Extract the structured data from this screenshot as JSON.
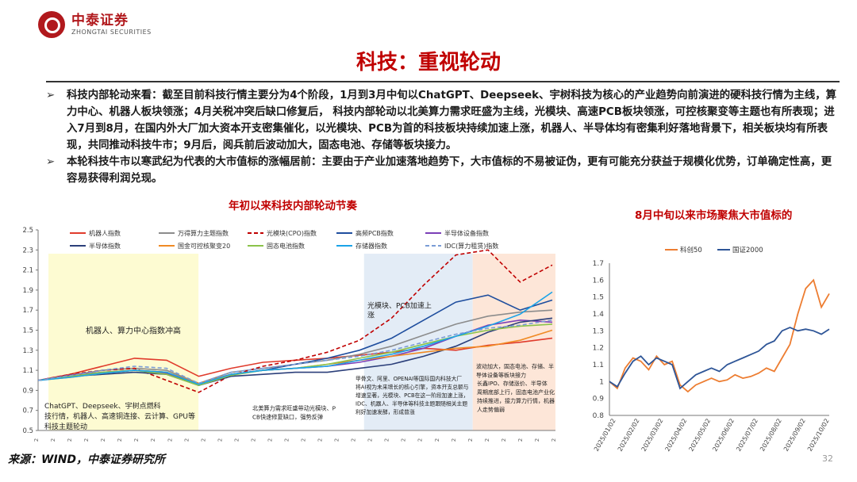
{
  "header": {
    "logo_cn": "中泰证券",
    "logo_en": "ZHONGTAI SECURITIES",
    "title": "科技：重视轮动"
  },
  "bullets": [
    "科技内部轮动来看：截至目前科技行情主要分为4个阶段，1月到3月中旬以ChatGPT、Deepseek、宇树科技为核心的产业趋势向前演进的硬科技行情为主线，算力中心、机器人板块领涨；4月关税冲突后缺口修复后， 科技内部轮动以北美算力需求旺盛为主线，光模块、高速PCB板块领涨，可控核聚变等主题也有所表现；进入7月到8月，在国内外大厂加大资本开支密集催化，以光模块、PCB为首的科技板块持续加速上涨，机器人、半导体均有密集利好落地背景下，相关板块均有所表现，共同推动科技牛市；9月后，阅兵前后波动加大，固态电池、存储等板块接力。",
    "本轮科技牛市以寒武纪为代表的大市值标的涨幅居前：主要由于产业加速落地趋势下，大市值标的不易被证伪，更有可能充分获益于规模化优势，订单确定性高，更容易获得利润兑现。"
  ],
  "left_chart_title": "年初以来科技内部轮动节奏",
  "right_chart_title": "8月中旬以来市场聚焦大市值标的",
  "source": "来源：WIND，中泰证券研究所",
  "page_number": "32",
  "colors": {
    "accent": "#c00000",
    "highlight_yellow": "#fdfbd2",
    "highlight_blue": "#e3ecf6",
    "highlight_orange": "#fde6d8"
  },
  "chart_data": [
    {
      "type": "line",
      "yticks": [
        "2.5",
        "2.3",
        "2.1",
        "1.9",
        "1.7",
        "1.5",
        "1.3",
        "1.1",
        "0.9",
        "0.7",
        "0.5"
      ],
      "ylim": [
        0.5,
        2.5
      ],
      "series": [
        {
          "name": "机器人指数",
          "color": "#e03b2c",
          "dash": "",
          "values": [
            1.0,
            1.06,
            1.14,
            1.22,
            1.2,
            1.04,
            1.12,
            1.18,
            1.2,
            1.22,
            1.25,
            1.28,
            1.32,
            1.3,
            1.35,
            1.38,
            1.42
          ]
        },
        {
          "name": "万得算力主题指数",
          "color": "#8c8c8c",
          "dash": "",
          "values": [
            1.0,
            1.05,
            1.1,
            1.12,
            1.1,
            0.97,
            1.08,
            1.12,
            1.16,
            1.2,
            1.26,
            1.34,
            1.45,
            1.56,
            1.64,
            1.68,
            1.7
          ]
        },
        {
          "name": "光模块(CPO)指数",
          "color": "#c00000",
          "dash": "5,3",
          "values": [
            1.0,
            1.06,
            1.1,
            1.12,
            1.0,
            0.88,
            1.05,
            1.14,
            1.2,
            1.28,
            1.4,
            1.62,
            1.95,
            2.25,
            2.3,
            1.98,
            2.15
          ]
        },
        {
          "name": "高频PCB指数",
          "color": "#1f4e9e",
          "dash": "",
          "values": [
            1.0,
            1.04,
            1.07,
            1.1,
            1.08,
            0.95,
            1.06,
            1.1,
            1.16,
            1.22,
            1.3,
            1.42,
            1.6,
            1.78,
            1.85,
            1.7,
            1.8
          ]
        },
        {
          "name": "半导体设备指数",
          "color": "#7b3fb7",
          "dash": "",
          "values": [
            1.0,
            1.05,
            1.08,
            1.1,
            1.07,
            0.97,
            1.06,
            1.1,
            1.12,
            1.14,
            1.18,
            1.24,
            1.32,
            1.44,
            1.55,
            1.6,
            1.58
          ]
        },
        {
          "name": "半导体指数",
          "color": "#2b3f7a",
          "dash": "",
          "values": [
            1.0,
            1.04,
            1.06,
            1.08,
            1.06,
            0.95,
            1.04,
            1.06,
            1.08,
            1.08,
            1.12,
            1.16,
            1.24,
            1.34,
            1.48,
            1.58,
            1.62
          ]
        },
        {
          "name": "国金可控核聚变20",
          "color": "#f08a24",
          "dash": "",
          "values": [
            1.0,
            1.03,
            1.07,
            1.1,
            1.08,
            0.97,
            1.06,
            1.1,
            1.12,
            1.16,
            1.2,
            1.24,
            1.28,
            1.32,
            1.34,
            1.4,
            1.5
          ]
        },
        {
          "name": "固态电池指数",
          "color": "#8bc34a",
          "dash": "",
          "values": [
            1.0,
            1.04,
            1.08,
            1.1,
            1.06,
            0.95,
            1.05,
            1.1,
            1.12,
            1.16,
            1.22,
            1.28,
            1.36,
            1.44,
            1.5,
            1.54,
            1.56
          ]
        },
        {
          "name": "存储器指数",
          "color": "#1aa3e8",
          "dash": "",
          "values": [
            1.0,
            1.03,
            1.07,
            1.1,
            1.08,
            0.96,
            1.06,
            1.1,
            1.12,
            1.14,
            1.2,
            1.26,
            1.34,
            1.44,
            1.54,
            1.66,
            1.88
          ]
        },
        {
          "name": "IDC(算力租赁)指数",
          "color": "#7a9cd6",
          "dash": "5,3",
          "values": [
            1.0,
            1.05,
            1.1,
            1.14,
            1.12,
            0.97,
            1.08,
            1.12,
            1.16,
            1.2,
            1.24,
            1.3,
            1.38,
            1.46,
            1.52,
            1.55,
            1.6
          ]
        }
      ],
      "annotations": [
        "机器人、算力中心指数冲高",
        "ChatGPT、Deepseek、宇树点燃科技行情，机器人、高速铜连接、云计算、GPU等科技主题轮动",
        "北美算力需求旺盛带动光模块、PCB快速修复缺口，强势反弹",
        "光模块、PCB加速上涨",
        "甲骨文、阿里、OPENAI等国际国内科技大厂将AI视为未来增长的核心引擎，资本开支总额与增速显著，光模块、PCB在这一阶段加速上涨，IDC、机器人、半导体等科技主题跟随相关主题利好加速发酵，形成普涨",
        "波动加大，固态电池、存储、半导体设备等板块接力",
        "长鑫IPO、存储涨价、半导体周期底部上行，固态电池产业化持续推进，接力算力行情，机器人走势偏弱"
      ]
    },
    {
      "type": "line",
      "yticks": [
        "1.7",
        "1.6",
        "1.5",
        "1.4",
        "1.3",
        "1.2",
        "1.1",
        "1",
        "0.9",
        "0.8"
      ],
      "ylim": [
        0.8,
        1.7
      ],
      "xticks": [
        "2025/01/02",
        "2025/02/02",
        "2025/03/02",
        "2025/04/02",
        "2025/05/02",
        "2025/06/02",
        "2025/07/02",
        "2025/08/02",
        "2025/09/02",
        "2025/10/02"
      ],
      "series": [
        {
          "name": "科创50",
          "color": "#ed7d31",
          "values": [
            1.0,
            0.96,
            1.08,
            1.14,
            1.12,
            1.07,
            1.15,
            1.1,
            1.12,
            0.98,
            0.94,
            0.98,
            1.0,
            1.02,
            1.0,
            1.01,
            1.04,
            1.02,
            1.03,
            1.05,
            1.08,
            1.06,
            1.14,
            1.22,
            1.4,
            1.55,
            1.6,
            1.44,
            1.52
          ]
        },
        {
          "name": "国证2000",
          "color": "#2e5597",
          "values": [
            1.0,
            0.97,
            1.05,
            1.12,
            1.15,
            1.1,
            1.14,
            1.12,
            1.1,
            0.96,
            1.0,
            1.04,
            1.06,
            1.08,
            1.06,
            1.1,
            1.12,
            1.14,
            1.16,
            1.18,
            1.22,
            1.24,
            1.3,
            1.32,
            1.3,
            1.31,
            1.3,
            1.28,
            1.31
          ]
        }
      ]
    }
  ]
}
